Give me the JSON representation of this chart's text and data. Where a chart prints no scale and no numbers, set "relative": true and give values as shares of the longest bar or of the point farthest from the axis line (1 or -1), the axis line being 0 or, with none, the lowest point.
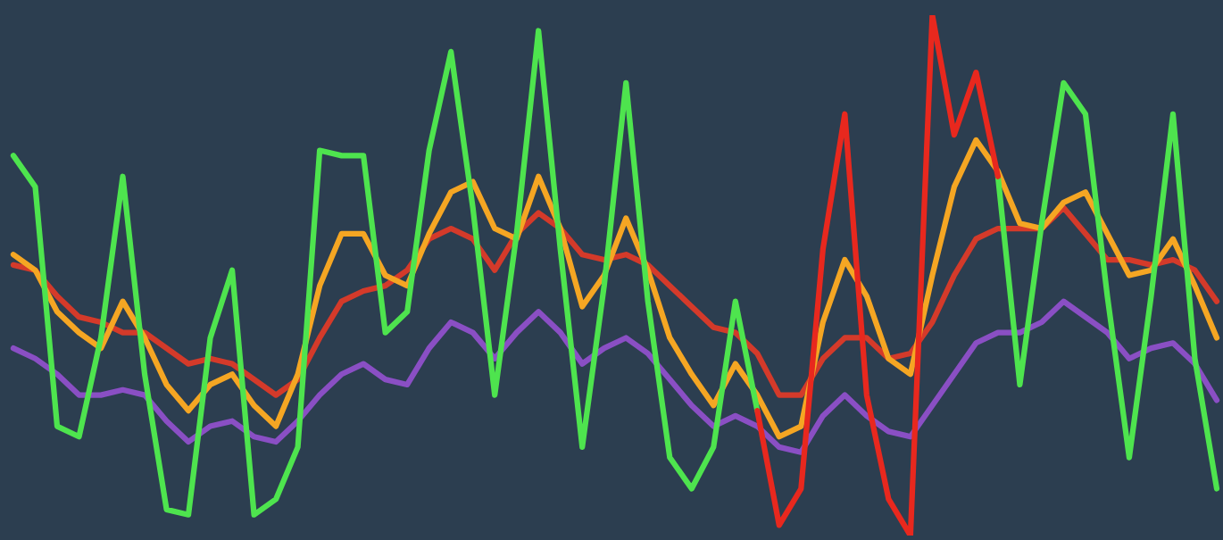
{
  "chart_data": {
    "type": "line",
    "relative": true,
    "tick_labels": false,
    "grid": false,
    "legend": false,
    "marker": "none",
    "line_style": "solid",
    "categories": [
      null,
      null,
      null,
      null,
      null,
      null,
      null,
      null,
      null,
      null,
      null,
      null,
      null,
      null,
      null,
      null,
      null,
      null,
      null,
      null,
      null,
      null,
      null,
      null,
      null,
      null,
      null,
      null,
      null,
      null,
      null,
      null,
      null,
      null,
      null,
      null,
      null,
      null,
      null,
      null,
      null,
      null,
      null,
      null,
      null,
      null,
      null,
      null,
      null,
      null,
      null,
      null,
      null,
      null,
      null,
      null
    ],
    "series": [
      {
        "color": "#8a4fc4",
        "values": [
          0.36,
          0.34,
          0.31,
          0.27,
          0.27,
          0.28,
          0.27,
          0.22,
          0.18,
          0.21,
          0.22,
          0.19,
          0.18,
          0.22,
          0.27,
          0.31,
          0.33,
          0.3,
          0.29,
          0.36,
          0.41,
          0.39,
          0.34,
          0.39,
          0.43,
          0.39,
          0.33,
          0.36,
          0.38,
          0.35,
          0.3,
          0.25,
          0.21,
          0.23,
          0.21,
          0.17,
          0.16,
          0.23,
          0.27,
          0.23,
          0.2,
          0.19,
          0.25,
          0.31,
          0.37,
          0.39,
          0.39,
          0.41,
          0.45,
          0.42,
          0.39,
          0.34,
          0.36,
          0.37,
          0.33,
          0.26
        ]
      },
      {
        "color": "#d43a2a",
        "values": [
          0.52,
          0.51,
          0.46,
          0.42,
          0.41,
          0.39,
          0.39,
          0.36,
          0.33,
          0.34,
          0.33,
          0.3,
          0.27,
          0.3,
          0.38,
          0.45,
          0.47,
          0.48,
          0.51,
          0.57,
          0.59,
          0.57,
          0.51,
          0.58,
          0.62,
          0.59,
          0.54,
          0.53,
          0.54,
          0.52,
          0.48,
          0.44,
          0.4,
          0.39,
          0.35,
          0.27,
          0.27,
          0.34,
          0.38,
          0.38,
          0.34,
          0.35,
          0.41,
          0.5,
          0.57,
          0.59,
          0.59,
          0.59,
          0.63,
          0.58,
          0.53,
          0.53,
          0.52,
          0.53,
          0.51,
          0.45
        ]
      },
      {
        "color": "#f5a623",
        "values": [
          0.54,
          0.51,
          0.43,
          0.39,
          0.36,
          0.45,
          0.38,
          0.29,
          0.24,
          0.29,
          0.31,
          0.25,
          0.21,
          0.31,
          0.48,
          0.58,
          0.58,
          0.5,
          0.48,
          0.58,
          0.66,
          0.68,
          0.59,
          0.57,
          0.69,
          0.59,
          0.44,
          0.5,
          0.61,
          0.51,
          0.38,
          0.31,
          0.25,
          0.33,
          0.27,
          0.19,
          0.21,
          0.41,
          0.53,
          0.46,
          0.34,
          0.31,
          0.5,
          0.67,
          0.76,
          0.7,
          0.6,
          0.59,
          0.64,
          0.66,
          0.58,
          0.5,
          0.51,
          0.57,
          0.48,
          0.38
        ]
      },
      {
        "color": "#4ee44e",
        "values": [
          0.73,
          0.67,
          0.21,
          0.19,
          0.38,
          0.69,
          0.31,
          0.05,
          0.04,
          0.38,
          0.51,
          0.04,
          0.07,
          0.17,
          0.74,
          0.73,
          0.73,
          0.39,
          0.43,
          0.74,
          0.93,
          0.63,
          0.27,
          0.58,
          0.97,
          0.55,
          0.17,
          0.48,
          0.87,
          0.45,
          0.15,
          0.09,
          0.17,
          0.45,
          0.24,
          null,
          null,
          null,
          null,
          null,
          null,
          null,
          null,
          null,
          null,
          0.69,
          0.29,
          0.6,
          0.87,
          0.81,
          0.46,
          0.15,
          0.46,
          0.81,
          0.34,
          0.09
        ]
      },
      {
        "color": "#e8281e",
        "values": [
          null,
          null,
          null,
          null,
          null,
          null,
          null,
          null,
          null,
          null,
          null,
          null,
          null,
          null,
          null,
          null,
          null,
          null,
          null,
          null,
          null,
          null,
          null,
          null,
          null,
          null,
          null,
          null,
          null,
          null,
          null,
          null,
          null,
          null,
          0.24,
          0.02,
          0.09,
          0.55,
          0.81,
          0.27,
          0.07,
          0,
          1,
          0.77,
          0.89,
          0.69,
          null,
          null,
          null,
          null,
          null,
          null,
          null,
          null,
          null,
          null
        ]
      }
    ]
  }
}
